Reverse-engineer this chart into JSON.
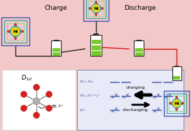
{
  "bg_color": "#f2c8c8",
  "title_charge": "Charge",
  "title_discharge": "Discharge",
  "title_fontsize": 6.5,
  "ni_color": "#f0d800",
  "ni_text": "Ni",
  "crystal_teal": "#28b8b8",
  "crystal_edge": "#50a0d0",
  "box_blue": "#4858b8",
  "box_teal": "#38a8a8",
  "box_green_light": "#98d898",
  "battery_green": "#78c830",
  "battery_body": "#ffffff",
  "battery_dark": "#282828",
  "arrow_dark": "#282828",
  "arrow_red": "#d81818",
  "d3d_bg": "#ffffff",
  "d3d_border": "#d8d8d8",
  "orbital_bg": "#e8eaf8",
  "orbital_border": "#7888b8",
  "charging_label": "charging",
  "discharging_label": "discharging",
  "angle_label": "85.7°",
  "orbital_color": "#5868a8",
  "electron_color": "#5060b0"
}
